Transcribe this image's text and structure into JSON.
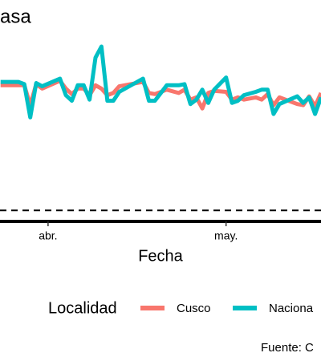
{
  "chart_data": {
    "type": "line",
    "title": "asa",
    "x_label": "Fecha",
    "legend_title": "Localidad",
    "source": "Fuente: C",
    "x": [
      -8,
      -5,
      -4,
      -3,
      -2,
      -1,
      2,
      3,
      4,
      5,
      6,
      7,
      8,
      9,
      10,
      11,
      12,
      16,
      17,
      18,
      20,
      22,
      23,
      24,
      25,
      26,
      27,
      28,
      30,
      31,
      32,
      33,
      35,
      36,
      37,
      38,
      39,
      42,
      43,
      44,
      45,
      46
    ],
    "xlim": [
      -8.1,
      46
    ],
    "xticks": [
      {
        "value": 0,
        "label": "abr."
      },
      {
        "value": 30,
        "label": "may."
      }
    ],
    "ylim": [
      0,
      20
    ],
    "hline": 1,
    "series": [
      {
        "name": "Cusco",
        "color": "#f8766d",
        "values": [
          12.3,
          12.3,
          12.3,
          10.5,
          12.4,
          12.0,
          12.7,
          12.0,
          11.5,
          12.0,
          12.0,
          11.4,
          12.3,
          12.0,
          11.4,
          11.6,
          12.2,
          12.6,
          11.6,
          11.5,
          11.9,
          11.6,
          11.9,
          11.0,
          11.2,
          10.2,
          11.6,
          11.8,
          11.7,
          11.0,
          11.2,
          11.0,
          11.2,
          11.0,
          11.5,
          10.5,
          11.2,
          10.6,
          10.5,
          11.3,
          10.4,
          11.6
        ]
      },
      {
        "name": "Naciona",
        "color": "#00bfc4",
        "values": [
          12.6,
          12.6,
          12.4,
          9.4,
          12.5,
          12.2,
          12.9,
          11.4,
          10.9,
          12.3,
          12.3,
          11.0,
          14.8,
          15.8,
          10.9,
          10.9,
          11.7,
          12.9,
          10.9,
          10.9,
          12.3,
          12.3,
          12.4,
          10.6,
          11.0,
          11.9,
          10.7,
          11.9,
          13.0,
          10.7,
          10.9,
          11.4,
          11.7,
          11.9,
          11.9,
          9.7,
          10.6,
          11.3,
          10.7,
          11.2,
          9.7,
          11.2
        ]
      }
    ]
  }
}
